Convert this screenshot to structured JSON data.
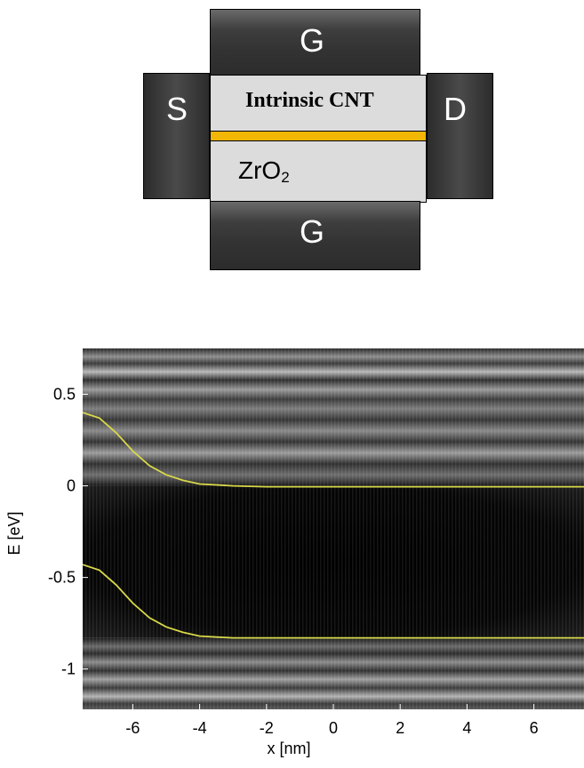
{
  "device": {
    "gate_top_label": "G",
    "gate_bottom_label": "G",
    "source_label": "S",
    "drain_label": "D",
    "channel_label": "Intrinsic CNT",
    "oxide_label": "ZrO",
    "oxide_subscript": "2",
    "colors": {
      "metal": "#3a3a3a",
      "channel": "#dcdcdc",
      "cnt": "#f2b705"
    }
  },
  "chart_data": {
    "type": "heatmap",
    "xlabel": "x [nm]",
    "ylabel": "E [eV]",
    "xlim": [
      -7.5,
      7.5
    ],
    "ylim": [
      -1.22,
      0.75
    ],
    "x_ticks": [
      "-6",
      "-4",
      "-2",
      "0",
      "2",
      "4",
      "6"
    ],
    "y_ticks": [
      "0.5",
      "0",
      "-0.5",
      "-1"
    ],
    "series": [
      {
        "color": "#d8d84a",
        "x": [
          -7.5,
          -7.0,
          -6.5,
          -6.0,
          -5.5,
          -5.0,
          -4.5,
          -4.0,
          -3.5,
          -3.0,
          -2.0,
          0,
          2,
          4,
          6,
          7.5
        ],
        "y": [
          0.4,
          0.37,
          0.29,
          0.19,
          0.11,
          0.06,
          0.03,
          0.01,
          0.005,
          0.0,
          -0.005,
          -0.005,
          -0.005,
          -0.005,
          -0.005,
          -0.005
        ]
      },
      {
        "color": "#d8d84a",
        "x": [
          -7.5,
          -7.0,
          -6.5,
          -6.0,
          -5.5,
          -5.0,
          -4.5,
          -4.0,
          -3.5,
          -3.0,
          -2.0,
          0,
          2,
          4,
          6,
          7.5
        ],
        "y": [
          -0.43,
          -0.46,
          -0.54,
          -0.64,
          -0.72,
          -0.77,
          -0.8,
          -0.82,
          -0.825,
          -0.83,
          -0.83,
          -0.83,
          -0.83,
          -0.83,
          -0.83,
          -0.83
        ]
      }
    ]
  }
}
